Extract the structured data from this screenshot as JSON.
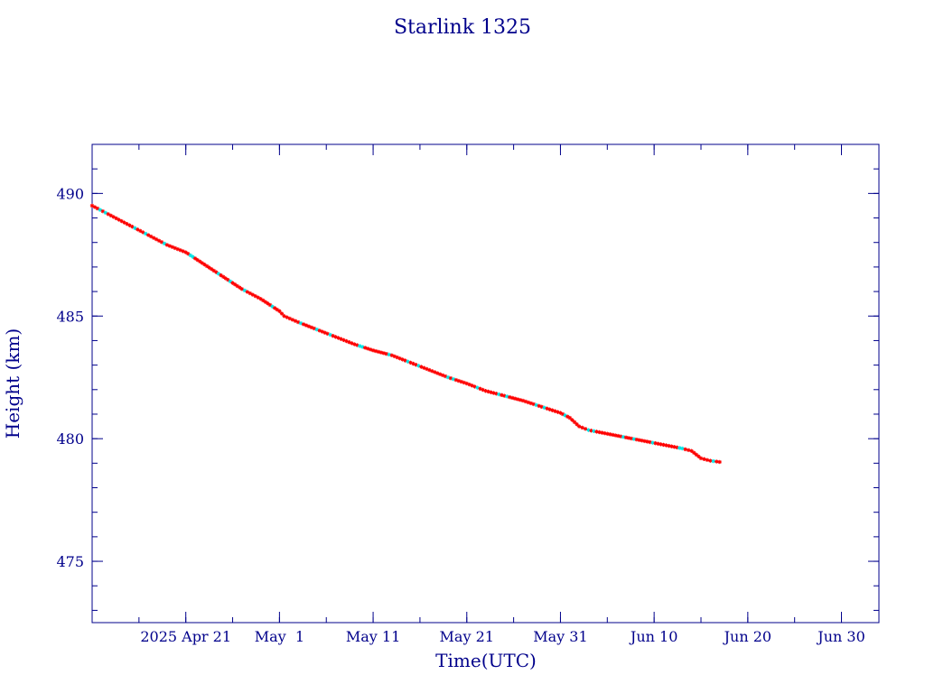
{
  "colors": {
    "axis": "#00008b",
    "line": "#000000",
    "marker_red": "#ff0000",
    "marker_cyan": "#00e5e5"
  },
  "chart_data": {
    "type": "line",
    "title": "Starlink 1325",
    "xlabel": "Time(UTC)",
    "ylabel": "Height (km)",
    "x_range": [
      "2025-04-11",
      "2025-07-04"
    ],
    "ylim": [
      472.5,
      492
    ],
    "x_ticks": [
      {
        "date": "2025-04-21",
        "label": "2025 Apr 21"
      },
      {
        "date": "2025-05-01",
        "label": "May  1"
      },
      {
        "date": "2025-05-11",
        "label": "May 11"
      },
      {
        "date": "2025-05-21",
        "label": "May 21"
      },
      {
        "date": "2025-05-31",
        "label": "May 31"
      },
      {
        "date": "2025-06-10",
        "label": "Jun 10"
      },
      {
        "date": "2025-06-20",
        "label": "Jun 20"
      },
      {
        "date": "2025-06-30",
        "label": "Jun 30"
      }
    ],
    "y_ticks": [
      475,
      480,
      485,
      490
    ],
    "grid": false,
    "series": [
      {
        "x": [
          "2025-04-11T00:00",
          "2025-04-13T00:00",
          "2025-04-15T00:00",
          "2025-04-17T00:00",
          "2025-04-19T00:00",
          "2025-04-21T00:00",
          "2025-04-23T00:00",
          "2025-04-25T00:00",
          "2025-04-27T00:00",
          "2025-04-29T00:00",
          "2025-05-01T00:00",
          "2025-05-01T12:00",
          "2025-05-03T00:00",
          "2025-05-05T00:00",
          "2025-05-07T00:00",
          "2025-05-09T00:00",
          "2025-05-11T00:00",
          "2025-05-13T00:00",
          "2025-05-15T00:00",
          "2025-05-17T00:00",
          "2025-05-19T00:00",
          "2025-05-21T00:00",
          "2025-05-23T00:00",
          "2025-05-25T00:00",
          "2025-05-27T00:00",
          "2025-05-29T00:00",
          "2025-05-31T00:00",
          "2025-06-01T00:00",
          "2025-06-02T00:00",
          "2025-06-03T00:00",
          "2025-06-05T00:00",
          "2025-06-07T00:00",
          "2025-06-09T00:00",
          "2025-06-11T00:00",
          "2025-06-13T00:00",
          "2025-06-14T00:00",
          "2025-06-15T00:00",
          "2025-06-16T00:00",
          "2025-06-17T00:00"
        ],
        "y": [
          489.5,
          489.1,
          488.7,
          488.3,
          487.9,
          487.6,
          487.1,
          486.6,
          486.1,
          485.7,
          485.2,
          485.0,
          484.75,
          484.45,
          484.15,
          483.85,
          483.6,
          483.4,
          483.1,
          482.8,
          482.5,
          482.25,
          481.95,
          481.75,
          481.55,
          481.3,
          481.05,
          480.85,
          480.5,
          480.35,
          480.2,
          480.05,
          479.9,
          479.75,
          479.6,
          479.5,
          479.2,
          479.1,
          479.05
        ]
      }
    ]
  }
}
